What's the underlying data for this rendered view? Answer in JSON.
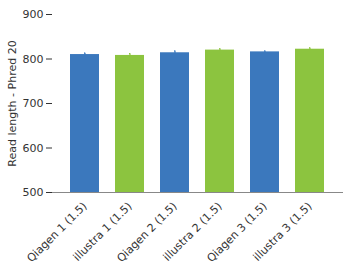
{
  "chart_data": {
    "type": "bar",
    "categories": [
      "Qiagen 1 (1.5)",
      "illustra 1 (1.5)",
      "Qiagen 2 (1.5)",
      "illustra 2 (1.5)",
      "Qiagen 3 (1.5)",
      "illustra 3 (1.5)"
    ],
    "values": [
      810,
      808,
      814,
      820,
      816,
      822
    ],
    "errors": [
      3,
      4,
      4,
      3,
      2,
      3
    ],
    "colors": [
      "#3b78bd",
      "#8cc43f",
      "#3b78bd",
      "#8cc43f",
      "#3b78bd",
      "#8cc43f"
    ],
    "y_label": "Read length - Phred 20",
    "ylim": [
      500,
      900
    ],
    "yticks": [
      500,
      600,
      700,
      800,
      900
    ],
    "grid": false
  }
}
